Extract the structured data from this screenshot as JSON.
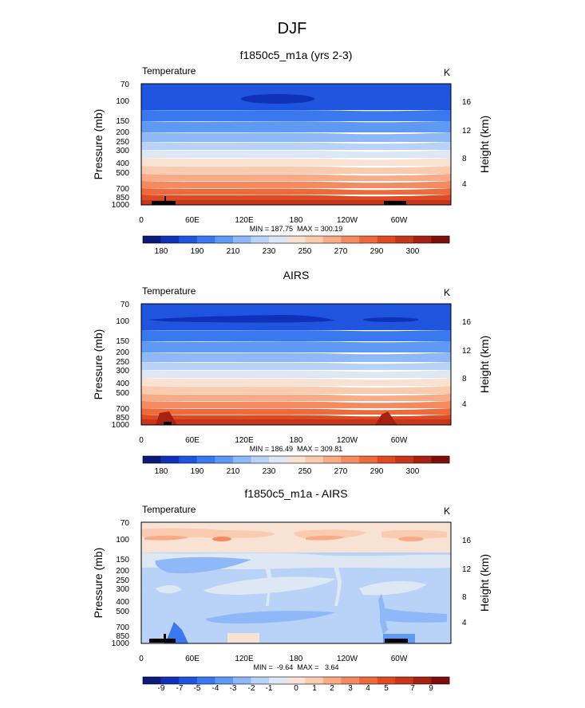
{
  "figure": {
    "title": "DJF"
  },
  "colors": {
    "abs_palette": [
      "#0a1a7a",
      "#1030b8",
      "#1f54df",
      "#3a78ef",
      "#5e99f5",
      "#8fb8f8",
      "#b9d2f7",
      "#dde8f4",
      "#f7e2d4",
      "#fbcbb0",
      "#f9ab86",
      "#f48a60",
      "#ec6a3c",
      "#e04a22",
      "#c7361a",
      "#a52212",
      "#7d0f0a"
    ],
    "diff_palette": [
      "#0a1a7a",
      "#1030b8",
      "#1f54df",
      "#3a78ef",
      "#5e99f5",
      "#8fb8f8",
      "#b9d2f7",
      "#dde8f4",
      "#f7e2d4",
      "#fbcbb0",
      "#f9ab86",
      "#f48a60",
      "#ec6a3c",
      "#e04a22",
      "#c7361a",
      "#a52212",
      "#7d0f0a"
    ],
    "terrain": "#000000"
  },
  "chart_data": [
    {
      "type": "heatmap",
      "title": "f1850c5_m1a (yrs 2-3)",
      "left_label": "Temperature",
      "right_label": "K",
      "ylabel": "Pressure (mb)",
      "y2label": "Height (km)",
      "y_ticks": [
        "70",
        "100",
        "150",
        "200",
        "250",
        "300",
        "400",
        "500",
        "700",
        "850",
        "1000"
      ],
      "y2_ticks": [
        "16",
        "12",
        "8",
        "4"
      ],
      "x_ticks": [
        "0",
        "60E",
        "120E",
        "180",
        "120W",
        "60W"
      ],
      "xlim": [
        0,
        360
      ],
      "ylim": [
        1000,
        70
      ],
      "stats": "MIN = 187.75  MAX = 300.19",
      "colorbar_labels": [
        "180",
        "190",
        "210",
        "230",
        "250",
        "270",
        "290",
        "300"
      ]
    },
    {
      "type": "heatmap",
      "title": "AIRS",
      "left_label": "Temperature",
      "right_label": "K",
      "ylabel": "Pressure (mb)",
      "y2label": "Height (km)",
      "y_ticks": [
        "70",
        "100",
        "150",
        "200",
        "250",
        "300",
        "400",
        "500",
        "700",
        "850",
        "1000"
      ],
      "y2_ticks": [
        "16",
        "12",
        "8",
        "4"
      ],
      "x_ticks": [
        "0",
        "60E",
        "120E",
        "180",
        "120W",
        "60W"
      ],
      "xlim": [
        0,
        360
      ],
      "ylim": [
        1000,
        70
      ],
      "stats": "MIN = 186.49  MAX = 309.81",
      "colorbar_labels": [
        "180",
        "190",
        "210",
        "230",
        "250",
        "270",
        "290",
        "300"
      ]
    },
    {
      "type": "heatmap",
      "title": "f1850c5_m1a - AIRS",
      "left_label": "Temperature",
      "right_label": "K",
      "ylabel": "Pressure (mb)",
      "y2label": "Height (km)",
      "y_ticks": [
        "70",
        "100",
        "150",
        "200",
        "250",
        "300",
        "400",
        "500",
        "700",
        "850",
        "1000"
      ],
      "y2_ticks": [
        "16",
        "12",
        "8",
        "4"
      ],
      "x_ticks": [
        "0",
        "60E",
        "120E",
        "180",
        "120W",
        "60W"
      ],
      "xlim": [
        0,
        360
      ],
      "ylim": [
        1000,
        70
      ],
      "stats": "MIN =  -9.64  MAX =   3.64",
      "colorbar_labels": [
        "-9",
        "-7",
        "-5",
        "-4",
        "-3",
        "-2",
        "-1",
        "0",
        "1",
        "2",
        "3",
        "4",
        "5",
        "7",
        "9"
      ]
    }
  ]
}
